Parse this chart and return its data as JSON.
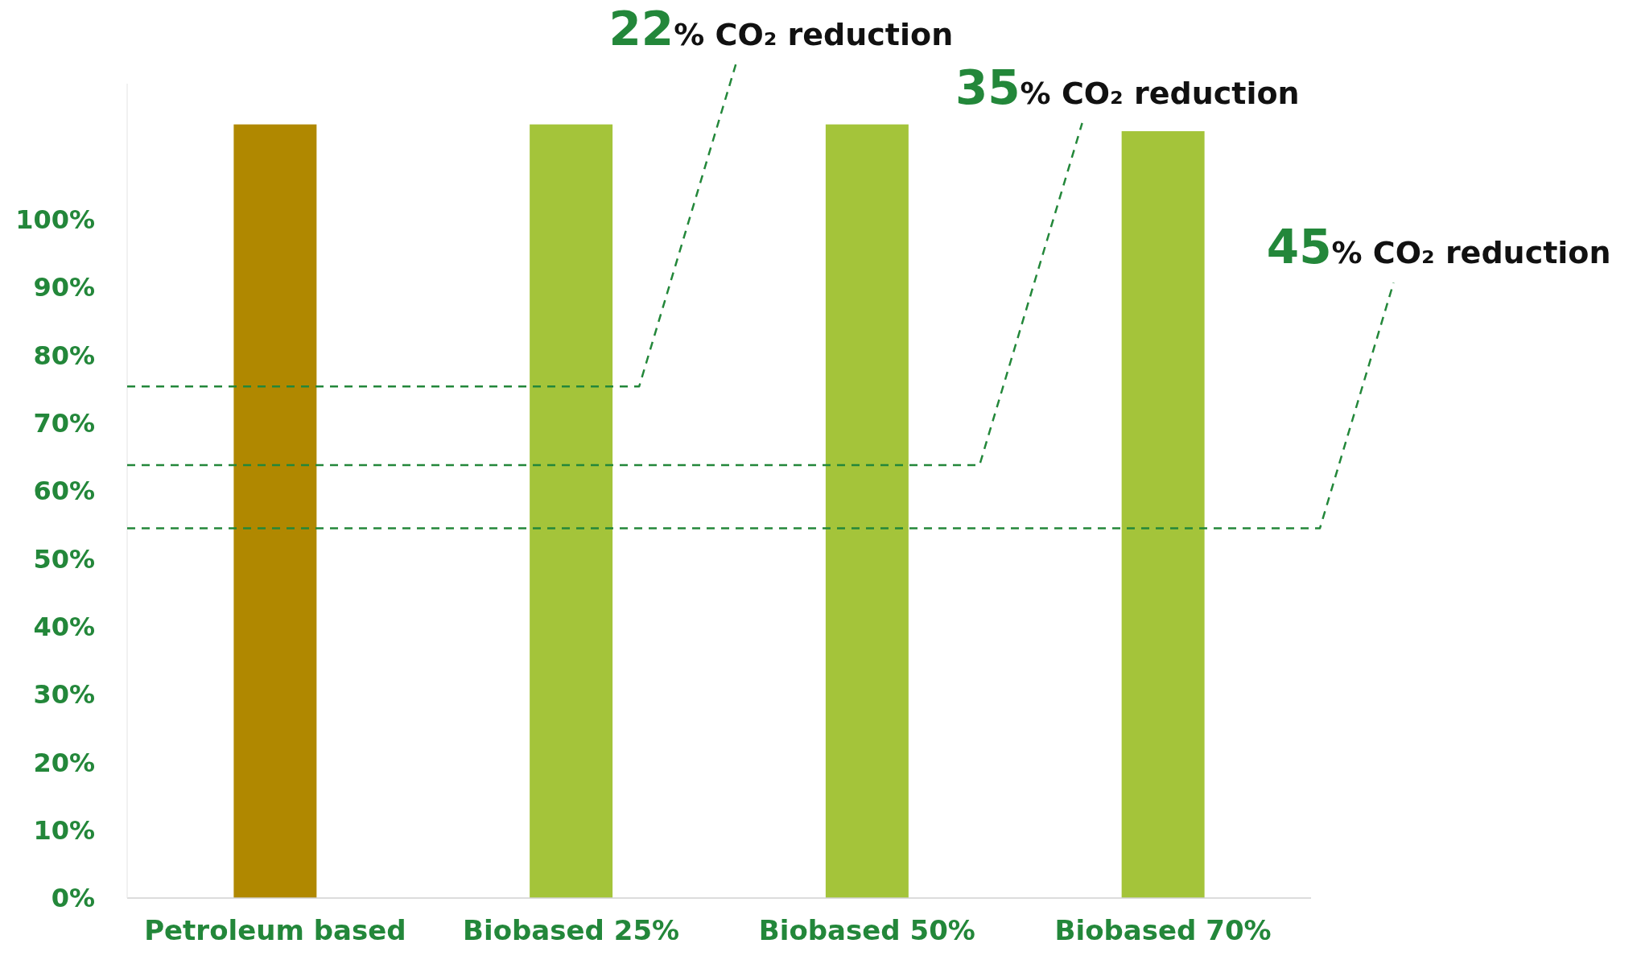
{
  "chart_data": {
    "type": "bar",
    "categories": [
      "Petroleum based",
      "Biobased 25%",
      "Biobased 50%",
      "Biobased 70%"
    ],
    "values": [
      114,
      114,
      114,
      113
    ],
    "colors": [
      "#b08800",
      "#a4c43a",
      "#a4c43a",
      "#a4c43a"
    ],
    "ylim": [
      0,
      120
    ],
    "yticks": [
      {
        "value": 0,
        "label": "0%"
      },
      {
        "value": 10,
        "label": "10%"
      },
      {
        "value": 20,
        "label": "20%"
      },
      {
        "value": 30,
        "label": "30%"
      },
      {
        "value": 40,
        "label": "40%"
      },
      {
        "value": 50,
        "label": "50%"
      },
      {
        "value": 60,
        "label": "60%"
      },
      {
        "value": 70,
        "label": "70%"
      },
      {
        "value": 80,
        "label": "80%"
      },
      {
        "value": 90,
        "label": "90%"
      },
      {
        "value": 100,
        "label": "100%"
      }
    ],
    "ref_lines": [
      {
        "axis": "y",
        "value": 75.4,
        "label": "22% CO₂ reduction",
        "color": "#23873a",
        "line_style": "dashed"
      },
      {
        "axis": "y",
        "value": 63.8,
        "label": "35% CO₂ reduction",
        "color": "#23873a",
        "line_style": "dashed"
      },
      {
        "axis": "y",
        "value": 54.5,
        "label": "45% CO₂ reduction",
        "color": "#23873a",
        "line_style": "dashed"
      }
    ],
    "grid": false
  }
}
